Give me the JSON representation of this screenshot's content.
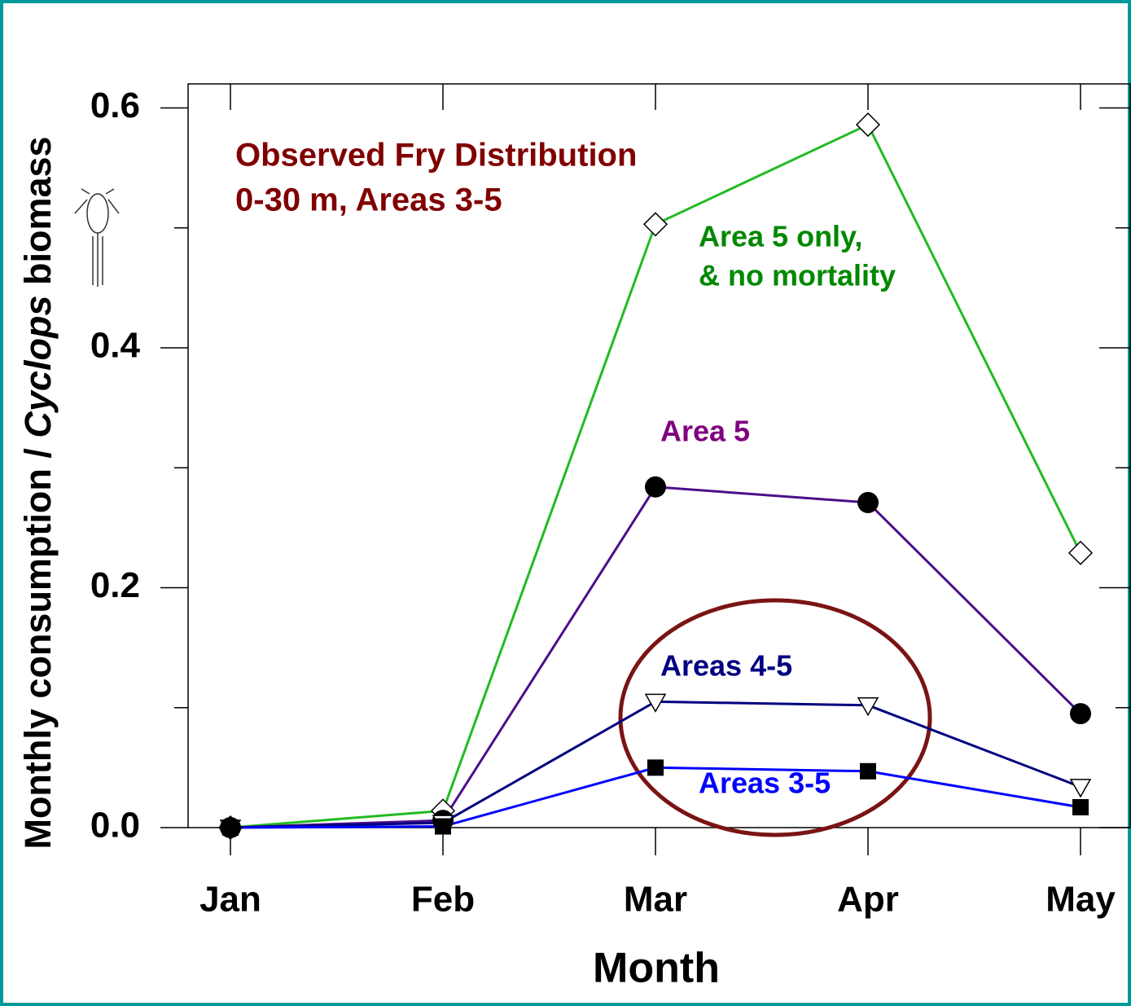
{
  "chart_data": {
    "type": "line",
    "ylabel": [
      "Monthly consumption / ",
      "Cyclops",
      " biomass"
    ],
    "xlabel": "Month",
    "categories": [
      "Jan",
      "Feb",
      "Mar",
      "Apr",
      "May"
    ],
    "series": [
      {
        "name": [
          "Area 5 only,",
          "& no mortality"
        ],
        "color": "#22bb22",
        "label_color": "#008800",
        "marker": "diamond",
        "values": [
          0.0,
          0.014,
          0.503,
          0.586,
          0.229
        ]
      },
      {
        "name": [
          "Area 5"
        ],
        "color": "#4b0f8a",
        "label_color": "#800080",
        "marker": "circle",
        "values": [
          0.0,
          0.006,
          0.284,
          0.271,
          0.095
        ]
      },
      {
        "name": [
          "Areas 4-5"
        ],
        "color": "#000080",
        "label_color": "#000080",
        "marker": "triangle-down",
        "values": [
          0.0,
          0.004,
          0.105,
          0.102,
          0.034
        ]
      },
      {
        "name": [
          "Areas 3-5"
        ],
        "color": "#0000ff",
        "label_color": "#0000ff",
        "marker": "square",
        "values": [
          0.0,
          0.001,
          0.05,
          0.047,
          0.017
        ]
      }
    ],
    "annotation": {
      "lines": [
        "Observed Fry Distribution",
        "0-30 m, Areas 3-5"
      ],
      "color": "#800000"
    },
    "ylim": [
      0,
      0.62
    ],
    "yticks": [
      {
        "value": 0,
        "label": "0.0"
      },
      0.2,
      0.4,
      0.6
    ],
    "yminorticks": [
      0.1,
      0.3,
      0.5
    ]
  }
}
